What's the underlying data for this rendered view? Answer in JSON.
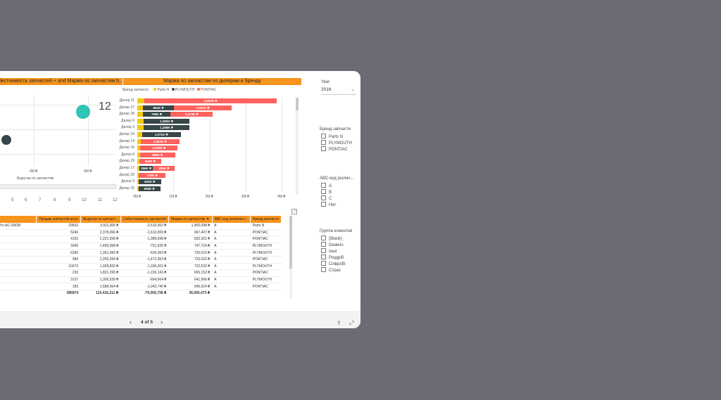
{
  "scatter": {
    "title": "...бестоимость запчастей + and Маржа по запчастям b...",
    "corner_label": "С",
    "point_label": "12",
    "xlabel": "Выручка по запчастям",
    "xticks": [
      "4M ₴",
      "6M ₴"
    ],
    "bottom_ticks": [
      "5",
      "6",
      "7",
      "8",
      "9",
      "10",
      "11",
      "12"
    ]
  },
  "bar_chart": {
    "title": "Маржа по запчастям по дилерам и бренду",
    "legend_title": "Бренд запчасти",
    "legend": [
      {
        "name": "Parts N",
        "color": "#f2c811"
      },
      {
        "name": "PLYMOUTH",
        "color": "#374649"
      },
      {
        "name": "PONTIAC",
        "color": "#fd625e"
      }
    ],
    "xticks": [
      "0M ₴",
      "1M ₴",
      "2M ₴",
      "3M ₴",
      "4M ₴"
    ]
  },
  "chart_data": {
    "type": "bar",
    "orientation": "horizontal-stacked",
    "title": "Маржа по запчастям по дилерам и бренду",
    "xlim": [
      0,
      4000000
    ],
    "categories": [
      "Дилер 11",
      "Дилер 27",
      "Дилер 28",
      "Дилер 6",
      "Дилер 3",
      "Дилер 24",
      "Дилер 14",
      "Дилер 15",
      "Дилер 8",
      "Дилер 29",
      "Дилер 17",
      "Дилер 20",
      "Дилер 9",
      "Дилер 25"
    ],
    "series": [
      {
        "name": "Parts N",
        "values": [
          200000,
          150000,
          150000,
          180000,
          180000,
          130000,
          100000,
          80000,
          70000,
          60000,
          50000,
          40000,
          30000,
          30000
        ]
      },
      {
        "name": "PLYMOUTH",
        "values": [
          0,
          864000,
          769000,
          1260000,
          1258000,
          1071000,
          0,
          0,
          0,
          0,
          386000,
          0,
          626000,
          606000
        ]
      },
      {
        "name": "PONTIAC",
        "values": [
          3654000,
          1601000,
          1174000,
          0,
          0,
          0,
          1061000,
          1039000,
          980000,
          594000,
          605000,
          743000,
          0,
          0
        ]
      }
    ],
    "labels": [
      [
        "",
        "",
        "3,654K ₴"
      ],
      [
        "",
        "864K ₴",
        "1,601K ₴"
      ],
      [
        "",
        "769K ₴",
        "1,174K ₴"
      ],
      [
        "",
        "1,260K ₴",
        ""
      ],
      [
        "",
        "1,258K ₴",
        ""
      ],
      [
        "",
        "1,071K ₴",
        ""
      ],
      [
        "",
        "",
        "1,061K ₴"
      ],
      [
        "",
        "",
        "1,039K ₴"
      ],
      [
        "",
        "",
        "980K ₴"
      ],
      [
        "",
        "",
        "594K ₴"
      ],
      [
        "",
        "386K ₴",
        "605K ₴"
      ],
      [
        "",
        "",
        "743K ₴"
      ],
      [
        "",
        "626K ₴",
        ""
      ],
      [
        "",
        "606K ₴",
        ""
      ]
    ]
  },
  "table": {
    "columns": [
      "",
      "Продаж запчастей штук",
      "Выручка по запчаст...",
      "Себестоимость запчастей",
      "Маржа по запчастям",
      "ABC-код (количест...",
      "Бренд запчасти"
    ],
    "rows": [
      [
        "y. Pro AG SW38",
        "23810",
        "3,911,000 ₴",
        "-2,510,902 ₴",
        "1,400,098 ₴",
        "A",
        "Parts N"
      ],
      [
        "",
        "5246",
        "2,378,066 ₴",
        "-1,610,659 ₴",
        "967,407 ₴",
        "A",
        "PONTIAC"
      ],
      [
        "",
        "4162",
        "2,221,999 ₴",
        "-1,389,698 ₴",
        "832,301 ₴",
        "A",
        "PONTIAC"
      ],
      [
        "",
        "3345",
        "1,499,358 ₴",
        "-751,635 ₴",
        "747,724 ₴",
        "A",
        "PLYMOUTH"
      ],
      [
        "",
        "6283",
        "1,361,682 ₴",
        "-626,059 ₴",
        "735,623 ₴",
        "A",
        "PLYMOUTH"
      ],
      [
        "",
        "984",
        "2,205,394 ₴",
        "-1,472,363 ₴",
        "733,032 ₴",
        "A",
        "PONTIAC"
      ],
      [
        "",
        "10973",
        "1,928,833 ₴",
        "-1,206,301 ₴",
        "722,532 ₴",
        "A",
        "PLYMOUTH"
      ],
      [
        "",
        "230",
        "1,821,295 ₴",
        "-1,156,143 ₴",
        "665,152 ₴",
        "A",
        "PONTIAC"
      ],
      [
        "",
        "3137",
        "1,306,530 ₴",
        "-664,564 ₴",
        "641,966 ₴",
        "A",
        "PLYMOUTH"
      ],
      [
        "",
        "183",
        "1,588,064 ₴",
        "-1,042,740 ₴",
        "545,924 ₴",
        "A",
        "PONTIAC"
      ]
    ],
    "total": [
      "",
      "285874",
      "115,416,211 ₴",
      "-79,359,738 ₴",
      "36,056,473 ₴",
      "",
      ""
    ]
  },
  "slicers": {
    "year": {
      "title": "Year",
      "value": "2016"
    },
    "brand": {
      "title": "Бренд запчасти",
      "items": [
        "Parts N",
        "PLYMOUTH",
        "PONTIAC"
      ]
    },
    "abc": {
      "title": "ABC-код (колич...",
      "items": [
        "A",
        "B",
        "C",
        "Нет"
      ]
    },
    "clients": {
      "title": "Группа клиентов",
      "items": [
        "(Blank)",
        "Dealers",
        "Інші",
        "Роздріб",
        "Співробі",
        "Страх"
      ]
    }
  },
  "footer": {
    "page": "4 of 5"
  }
}
